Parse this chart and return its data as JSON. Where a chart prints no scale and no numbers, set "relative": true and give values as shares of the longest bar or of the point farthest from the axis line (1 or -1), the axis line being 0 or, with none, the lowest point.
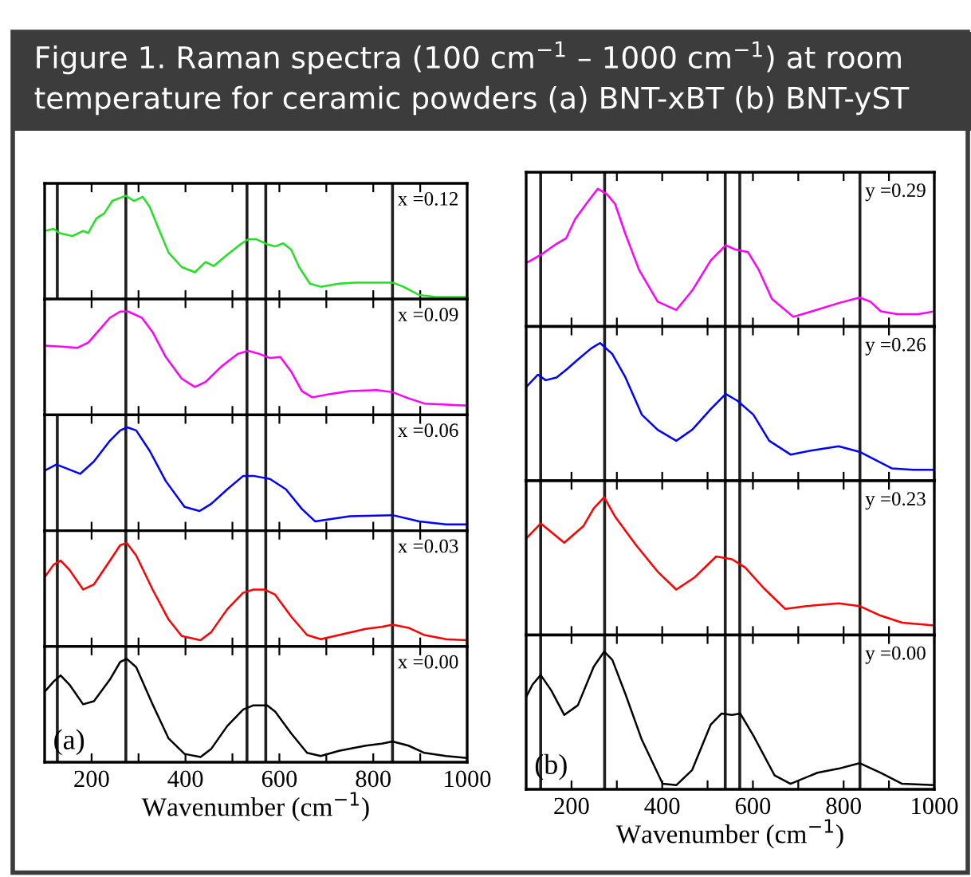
{
  "chart_data": [
    {
      "type": "line",
      "relative": true,
      "title": "Figure 1. Raman spectra (100 cm$^{−1}$ – 1000 cm$^{−1}$) at room temperature for ceramic powders (a) BNT-xBT (b) BNT-yST",
      "xlim": [
        100,
        1000
      ],
      "xticks": [
        {
          "value": 200,
          "label": null
        },
        {
          "value": 300,
          "label": null
        },
        {
          "value": 400,
          "label": null
        },
        {
          "value": 500,
          "label": null
        },
        {
          "value": 600,
          "label": null
        },
        {
          "value": 700,
          "label": null
        },
        {
          "value": 800,
          "label": null
        },
        {
          "value": 900,
          "label": null
        },
        {
          "value": 1000,
          "label": null
        }
      ],
      "tick_labels": false,
      "grid": false,
      "legend": false,
      "annotations": [
        "x =0.12"
      ],
      "ref_lines": [
        {
          "axis": "x",
          "value": 127
        },
        {
          "axis": "x",
          "value": 273
        },
        {
          "axis": "x",
          "value": 531
        },
        {
          "axis": "x",
          "value": 571
        },
        {
          "axis": "x",
          "value": 841
        }
      ],
      "series": [
        {
          "color": "#22e022",
          "x": [
            100,
            119,
            131,
            159,
            182,
            193,
            210,
            227,
            244,
            261,
            273,
            290,
            309,
            324,
            341,
            364,
            392,
            420,
            443,
            460,
            489,
            517,
            534,
            551,
            574,
            591,
            608,
            625,
            642,
            665,
            688,
            727,
            761,
            807,
            841,
            864,
            898,
            932,
            1000
          ],
          "values": [
            0.66,
            0.68,
            0.64,
            0.61,
            0.66,
            0.64,
            0.78,
            0.83,
            0.95,
            0.98,
            1,
            0.95,
            0.99,
            0.89,
            0.7,
            0.45,
            0.31,
            0.26,
            0.36,
            0.32,
            0.43,
            0.53,
            0.58,
            0.58,
            0.53,
            0.51,
            0.54,
            0.48,
            0.31,
            0.15,
            0.12,
            0.15,
            0.16,
            0.16,
            0.16,
            0.12,
            0.04,
            0.02,
            0.02
          ]
        }
      ]
    },
    {
      "type": "line",
      "relative": true,
      "xlim": [
        100,
        1000
      ],
      "xticks": [
        {
          "value": 200,
          "label": null
        },
        {
          "value": 300,
          "label": null
        },
        {
          "value": 400,
          "label": null
        },
        {
          "value": 500,
          "label": null
        },
        {
          "value": 600,
          "label": null
        },
        {
          "value": 700,
          "label": null
        },
        {
          "value": 800,
          "label": null
        },
        {
          "value": 900,
          "label": null
        },
        {
          "value": 1000,
          "label": null
        }
      ],
      "tick_labels": false,
      "grid": false,
      "legend": false,
      "annotations": [
        "x =0.09"
      ],
      "ref_lines": [
        {
          "axis": "x",
          "value": 273
        },
        {
          "axis": "x",
          "value": 531
        },
        {
          "axis": "x",
          "value": 571
        },
        {
          "axis": "x",
          "value": 841
        }
      ],
      "series": [
        {
          "color": "#ff00ff",
          "x": [
            100,
            136,
            170,
            193,
            216,
            239,
            261,
            278,
            307,
            330,
            358,
            392,
            420,
            443,
            477,
            511,
            534,
            557,
            580,
            602,
            625,
            648,
            670,
            705,
            750,
            807,
            841,
            875,
            909,
            955,
            1000
          ],
          "values": [
            0.67,
            0.66,
            0.65,
            0.7,
            0.82,
            0.94,
            1,
            1,
            0.94,
            0.8,
            0.56,
            0.35,
            0.27,
            0.32,
            0.47,
            0.59,
            0.62,
            0.59,
            0.55,
            0.56,
            0.42,
            0.23,
            0.17,
            0.2,
            0.23,
            0.24,
            0.22,
            0.16,
            0.11,
            0.1,
            0.09
          ]
        }
      ]
    },
    {
      "type": "line",
      "relative": true,
      "xlim": [
        100,
        1000
      ],
      "xticks": [
        {
          "value": 200,
          "label": null
        },
        {
          "value": 300,
          "label": null
        },
        {
          "value": 400,
          "label": null
        },
        {
          "value": 500,
          "label": null
        },
        {
          "value": 600,
          "label": null
        },
        {
          "value": 700,
          "label": null
        },
        {
          "value": 800,
          "label": null
        },
        {
          "value": 900,
          "label": null
        },
        {
          "value": 1000,
          "label": null
        }
      ],
      "tick_labels": false,
      "grid": false,
      "legend": false,
      "annotations": [
        "x =0.06"
      ],
      "ref_lines": [
        {
          "axis": "x",
          "value": 127
        },
        {
          "axis": "x",
          "value": 273
        },
        {
          "axis": "x",
          "value": 531
        },
        {
          "axis": "x",
          "value": 571
        },
        {
          "axis": "x",
          "value": 841
        }
      ],
      "series": [
        {
          "color": "#0000ff",
          "x": [
            100,
            125,
            148,
            176,
            205,
            239,
            261,
            276,
            295,
            324,
            358,
            398,
            430,
            455,
            489,
            523,
            545,
            580,
            614,
            648,
            676,
            750,
            841,
            898,
            955,
            1000
          ],
          "values": [
            0.58,
            0.64,
            0.6,
            0.55,
            0.67,
            0.87,
            0.97,
            1,
            0.97,
            0.77,
            0.48,
            0.23,
            0.19,
            0.26,
            0.4,
            0.53,
            0.53,
            0.5,
            0.4,
            0.21,
            0.09,
            0.14,
            0.15,
            0.09,
            0.06,
            0.06
          ]
        }
      ]
    },
    {
      "type": "line",
      "relative": true,
      "xlim": [
        100,
        1000
      ],
      "xticks": [
        {
          "value": 200,
          "label": null
        },
        {
          "value": 300,
          "label": null
        },
        {
          "value": 400,
          "label": null
        },
        {
          "value": 500,
          "label": null
        },
        {
          "value": 600,
          "label": null
        },
        {
          "value": 700,
          "label": null
        },
        {
          "value": 800,
          "label": null
        },
        {
          "value": 900,
          "label": null
        },
        {
          "value": 1000,
          "label": null
        }
      ],
      "tick_labels": false,
      "grid": false,
      "legend": false,
      "annotations": [
        "x =0.03"
      ],
      "ref_lines": [
        {
          "axis": "x",
          "value": 127
        },
        {
          "axis": "x",
          "value": 273
        },
        {
          "axis": "x",
          "value": 531
        },
        {
          "axis": "x",
          "value": 571
        },
        {
          "axis": "x",
          "value": 841
        }
      ],
      "series": [
        {
          "color": "#ff0000",
          "x": [
            100,
            119,
            134,
            153,
            182,
            205,
            239,
            261,
            275,
            295,
            330,
            364,
            392,
            432,
            455,
            489,
            523,
            545,
            568,
            591,
            625,
            659,
            688,
            727,
            784,
            818,
            841,
            875,
            909,
            955,
            1000
          ],
          "values": [
            0.67,
            0.79,
            0.83,
            0.74,
            0.55,
            0.6,
            0.83,
            0.98,
            1,
            0.88,
            0.55,
            0.26,
            0.1,
            0.06,
            0.14,
            0.36,
            0.52,
            0.55,
            0.55,
            0.5,
            0.29,
            0.11,
            0.07,
            0.11,
            0.17,
            0.19,
            0.21,
            0.18,
            0.11,
            0.07,
            0.06
          ]
        }
      ]
    },
    {
      "type": "line",
      "relative": true,
      "xlim": [
        100,
        1000
      ],
      "xticks": [
        200,
        {
          "value": 300,
          "label": null
        },
        400,
        {
          "value": 500,
          "label": null
        },
        600,
        {
          "value": 700,
          "label": null
        },
        800,
        {
          "value": 900,
          "label": null
        },
        1000
      ],
      "tick_labels": "x",
      "grid": false,
      "legend": false,
      "xlabel": "Wavenumber (cm$^{−1}$)",
      "annotations": [
        "x =0.00",
        "(a)"
      ],
      "ref_lines": [
        {
          "axis": "x",
          "value": 127
        },
        {
          "axis": "x",
          "value": 273
        },
        {
          "axis": "x",
          "value": 531
        },
        {
          "axis": "x",
          "value": 571
        },
        {
          "axis": "x",
          "value": 841
        }
      ],
      "series": [
        {
          "color": "#000000",
          "x": [
            100,
            119,
            134,
            153,
            182,
            205,
            239,
            261,
            275,
            295,
            330,
            364,
            398,
            432,
            455,
            489,
            523,
            545,
            574,
            591,
            625,
            659,
            688,
            727,
            784,
            818,
            841,
            875,
            909,
            955,
            1000
          ],
          "values": [
            0.68,
            0.78,
            0.84,
            0.75,
            0.56,
            0.59,
            0.8,
            0.97,
            1,
            0.92,
            0.56,
            0.23,
            0.08,
            0.05,
            0.13,
            0.35,
            0.51,
            0.55,
            0.55,
            0.49,
            0.28,
            0.09,
            0.06,
            0.11,
            0.16,
            0.18,
            0.2,
            0.16,
            0.09,
            0.06,
            0.04
          ]
        }
      ]
    },
    {
      "type": "line",
      "relative": true,
      "xlim": [
        100,
        1000
      ],
      "xticks": [
        {
          "value": 200,
          "label": null
        },
        {
          "value": 300,
          "label": null
        },
        {
          "value": 400,
          "label": null
        },
        {
          "value": 500,
          "label": null
        },
        {
          "value": 600,
          "label": null
        },
        {
          "value": 700,
          "label": null
        },
        {
          "value": 800,
          "label": null
        },
        {
          "value": 900,
          "label": null
        },
        {
          "value": 1000,
          "label": null
        }
      ],
      "tick_labels": false,
      "grid": false,
      "legend": false,
      "annotations": [
        "y =0.29"
      ],
      "ref_lines": [
        {
          "axis": "x",
          "value": 132
        },
        {
          "axis": "x",
          "value": 273
        },
        {
          "axis": "x",
          "value": 539
        },
        {
          "axis": "x",
          "value": 571
        },
        {
          "axis": "x",
          "value": 836
        }
      ],
      "series": [
        {
          "color": "#ff00ff",
          "x": [
            100,
            132,
            167,
            188,
            208,
            237,
            258,
            278,
            296,
            319,
            349,
            390,
            431,
            466,
            507,
            540,
            560,
            589,
            613,
            642,
            689,
            730,
            789,
            835,
            859,
            882,
            918,
            965,
            1000
          ],
          "values": [
            0.46,
            0.52,
            0.6,
            0.64,
            0.78,
            0.91,
            1,
            0.96,
            0.89,
            0.67,
            0.41,
            0.18,
            0.12,
            0.26,
            0.48,
            0.59,
            0.56,
            0.54,
            0.41,
            0.2,
            0.07,
            0.11,
            0.17,
            0.21,
            0.18,
            0.11,
            0.09,
            0.09,
            0.11
          ]
        }
      ]
    },
    {
      "type": "line",
      "relative": true,
      "xlim": [
        100,
        1000
      ],
      "xticks": [
        {
          "value": 200,
          "label": null
        },
        {
          "value": 300,
          "label": null
        },
        {
          "value": 400,
          "label": null
        },
        {
          "value": 500,
          "label": null
        },
        {
          "value": 600,
          "label": null
        },
        {
          "value": 700,
          "label": null
        },
        {
          "value": 800,
          "label": null
        },
        {
          "value": 900,
          "label": null
        },
        {
          "value": 1000,
          "label": null
        }
      ],
      "tick_labels": false,
      "grid": false,
      "legend": false,
      "annotations": [
        "y =0.26"
      ],
      "ref_lines": [
        {
          "axis": "x",
          "value": 132
        },
        {
          "axis": "x",
          "value": 273
        },
        {
          "axis": "x",
          "value": 539
        },
        {
          "axis": "x",
          "value": 571
        },
        {
          "axis": "x",
          "value": 836
        }
      ],
      "series": [
        {
          "color": "#0000ff",
          "x": [
            100,
            126,
            143,
            167,
            190,
            214,
            243,
            263,
            290,
            319,
            355,
            390,
            431,
            466,
            507,
            540,
            566,
            601,
            636,
            683,
            730,
            789,
            835,
            871,
            906,
            953,
            1000
          ],
          "values": [
            0.68,
            0.77,
            0.73,
            0.75,
            0.81,
            0.88,
            0.96,
            1,
            0.92,
            0.75,
            0.48,
            0.37,
            0.29,
            0.37,
            0.52,
            0.63,
            0.58,
            0.48,
            0.29,
            0.19,
            0.22,
            0.25,
            0.21,
            0.15,
            0.09,
            0.08,
            0.08
          ]
        }
      ]
    },
    {
      "type": "line",
      "relative": true,
      "xlim": [
        100,
        1000
      ],
      "xticks": [
        {
          "value": 200,
          "label": null
        },
        {
          "value": 300,
          "label": null
        },
        {
          "value": 400,
          "label": null
        },
        {
          "value": 500,
          "label": null
        },
        {
          "value": 600,
          "label": null
        },
        {
          "value": 700,
          "label": null
        },
        {
          "value": 800,
          "label": null
        },
        {
          "value": 900,
          "label": null
        },
        {
          "value": 1000,
          "label": null
        }
      ],
      "tick_labels": false,
      "grid": false,
      "legend": false,
      "annotations": [
        "y =0.23"
      ],
      "ref_lines": [
        {
          "axis": "x",
          "value": 132
        },
        {
          "axis": "x",
          "value": 273
        },
        {
          "axis": "x",
          "value": 539
        },
        {
          "axis": "x",
          "value": 571
        },
        {
          "axis": "x",
          "value": 836
        }
      ],
      "series": [
        {
          "color": "#ff0000",
          "x": [
            100,
            132,
            184,
            226,
            249,
            272,
            296,
            343,
            390,
            431,
            472,
            519,
            554,
            583,
            624,
            671,
            718,
            789,
            835,
            882,
            929,
            1000
          ],
          "values": [
            0.7,
            0.81,
            0.67,
            0.79,
            0.92,
            1,
            0.86,
            0.65,
            0.46,
            0.33,
            0.42,
            0.57,
            0.55,
            0.49,
            0.34,
            0.19,
            0.21,
            0.23,
            0.21,
            0.14,
            0.09,
            0.07
          ]
        }
      ]
    },
    {
      "type": "line",
      "relative": true,
      "xlim": [
        100,
        1000
      ],
      "xticks": [
        200,
        {
          "value": 300,
          "label": null
        },
        400,
        {
          "value": 500,
          "label": null
        },
        600,
        {
          "value": 700,
          "label": null
        },
        800,
        {
          "value": 900,
          "label": null
        },
        1000
      ],
      "tick_labels": "x",
      "grid": false,
      "legend": false,
      "xlabel": "Wavenumber (cm$^{−1}$)",
      "annotations": [
        "y =0.00",
        "(b)"
      ],
      "ref_lines": [
        {
          "axis": "x",
          "value": 132
        },
        {
          "axis": "x",
          "value": 273
        },
        {
          "axis": "x",
          "value": 539
        },
        {
          "axis": "x",
          "value": 571
        },
        {
          "axis": "x",
          "value": 836
        }
      ],
      "series": [
        {
          "color": "#000000",
          "x": [
            100,
            114,
            132,
            155,
            184,
            214,
            249,
            272,
            290,
            319,
            355,
            401,
            431,
            466,
            507,
            531,
            554,
            572,
            601,
            648,
            683,
            742,
            789,
            835,
            882,
            929,
            1000
          ],
          "values": [
            0.67,
            0.76,
            0.83,
            0.72,
            0.54,
            0.61,
            0.89,
            1,
            0.94,
            0.69,
            0.36,
            0.04,
            0.03,
            0.14,
            0.47,
            0.55,
            0.54,
            0.55,
            0.39,
            0.1,
            0.04,
            0.12,
            0.15,
            0.19,
            0.12,
            0.04,
            0.03
          ]
        }
      ]
    }
  ]
}
